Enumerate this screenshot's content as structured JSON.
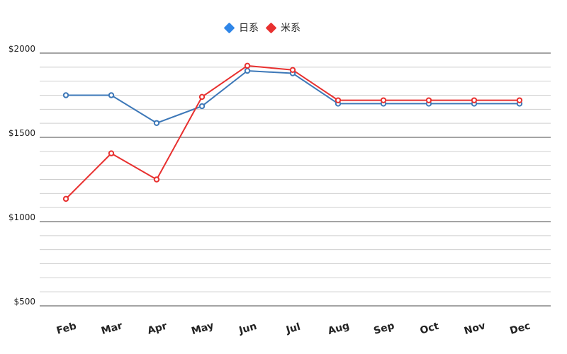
{
  "chart_data": {
    "type": "line",
    "categories": [
      "Feb",
      "Mar",
      "Apr",
      "May",
      "Jun",
      "Jul",
      "Aug",
      "Sep",
      "Oct",
      "Nov",
      "Dec"
    ],
    "series": [
      {
        "name": "日系",
        "color": "#3d78b8",
        "legend_color": "#2f86e8",
        "values": [
          1750,
          1750,
          1585,
          1685,
          1895,
          1880,
          1700,
          1700,
          1700,
          1700,
          1700
        ]
      },
      {
        "name": "米系",
        "color": "#e8302f",
        "legend_color": "#e8302f",
        "values": [
          1135,
          1405,
          1250,
          1740,
          1925,
          1900,
          1720,
          1720,
          1720,
          1720,
          1720
        ]
      }
    ],
    "y_ticks": [
      {
        "value": 500,
        "label": "$500"
      },
      {
        "value": 1000,
        "label": "$1000"
      },
      {
        "value": 1500,
        "label": "$1500"
      },
      {
        "value": 2000,
        "label": "$2000"
      }
    ],
    "ylim": [
      500,
      2000
    ],
    "grid": true,
    "legend_position": "top-center"
  }
}
